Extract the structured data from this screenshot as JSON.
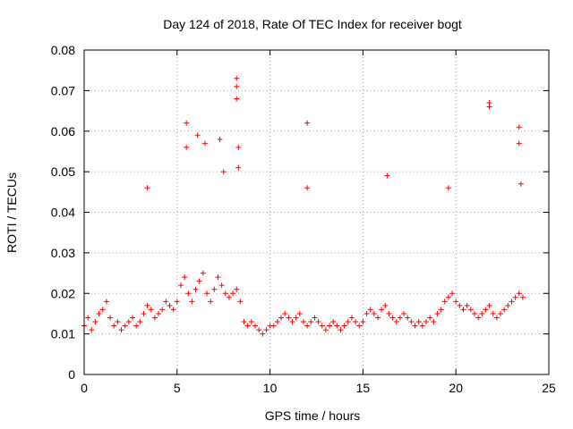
{
  "chart_data": {
    "type": "scatter",
    "title": "Day 124 of 2018, Rate Of TEC Index for receiver bogt",
    "xlabel": "GPS time / hours",
    "ylabel": "ROTI / TECUs",
    "xlim": [
      0,
      25
    ],
    "ylim": [
      0,
      0.08
    ],
    "xticks": [
      0,
      5,
      10,
      15,
      20,
      25
    ],
    "xtick_labels": [
      "0",
      "5",
      "10",
      "15",
      "20",
      "25"
    ],
    "yticks": [
      0,
      0.01,
      0.02,
      0.03,
      0.04,
      0.05,
      0.06,
      0.07,
      0.08
    ],
    "ytick_labels": [
      "0",
      "0.01",
      "0.02",
      "0.03",
      "0.04",
      "0.05",
      "0.06",
      "0.07",
      "0.08"
    ],
    "grid": true,
    "marker": "+",
    "color": "#ff0000",
    "series": [
      {
        "name": "ROTI",
        "x": [
          0.0,
          0.2,
          0.4,
          0.6,
          0.8,
          1.0,
          1.2,
          1.4,
          1.6,
          1.8,
          2.0,
          2.2,
          2.4,
          2.6,
          2.8,
          3.0,
          3.2,
          3.4,
          3.6,
          3.8,
          4.0,
          4.2,
          4.4,
          4.6,
          4.8,
          5.0,
          5.2,
          5.4,
          5.6,
          5.8,
          6.0,
          6.2,
          6.4,
          6.6,
          6.8,
          7.0,
          7.2,
          7.4,
          7.6,
          7.8,
          8.0,
          8.2,
          8.4,
          8.6,
          8.8,
          9.0,
          9.2,
          9.4,
          9.6,
          9.8,
          10.0,
          10.2,
          10.4,
          10.6,
          10.8,
          11.0,
          11.2,
          11.4,
          11.6,
          11.8,
          12.0,
          12.2,
          12.4,
          12.6,
          12.8,
          13.0,
          13.2,
          13.4,
          13.6,
          13.8,
          14.0,
          14.2,
          14.4,
          14.6,
          14.8,
          15.0,
          15.2,
          15.4,
          15.6,
          15.8,
          16.0,
          16.2,
          16.4,
          16.6,
          16.8,
          17.0,
          17.2,
          17.4,
          17.6,
          17.8,
          18.0,
          18.2,
          18.4,
          18.6,
          18.8,
          19.0,
          19.2,
          19.4,
          19.6,
          19.8,
          20.0,
          20.2,
          20.4,
          20.6,
          20.8,
          21.0,
          21.2,
          21.4,
          21.6,
          21.8,
          22.0,
          22.2,
          22.4,
          22.6,
          22.8,
          23.0,
          23.2,
          23.4,
          23.6,
          3.4,
          5.5,
          5.5,
          6.1,
          6.5,
          7.3,
          7.5,
          8.2,
          8.2,
          8.2,
          8.3,
          8.3,
          12.0,
          12.0,
          16.3,
          19.6,
          21.8,
          21.8,
          23.4,
          23.4,
          23.5
        ],
        "y": [
          0.012,
          0.014,
          0.011,
          0.013,
          0.015,
          0.016,
          0.018,
          0.014,
          0.012,
          0.013,
          0.011,
          0.012,
          0.013,
          0.014,
          0.012,
          0.013,
          0.015,
          0.017,
          0.016,
          0.014,
          0.015,
          0.016,
          0.018,
          0.017,
          0.016,
          0.018,
          0.022,
          0.024,
          0.02,
          0.018,
          0.021,
          0.023,
          0.025,
          0.02,
          0.018,
          0.021,
          0.024,
          0.022,
          0.02,
          0.019,
          0.02,
          0.021,
          0.018,
          0.013,
          0.012,
          0.013,
          0.012,
          0.011,
          0.01,
          0.011,
          0.012,
          0.012,
          0.013,
          0.014,
          0.015,
          0.014,
          0.013,
          0.014,
          0.015,
          0.013,
          0.012,
          0.013,
          0.014,
          0.013,
          0.012,
          0.011,
          0.012,
          0.013,
          0.012,
          0.011,
          0.012,
          0.013,
          0.014,
          0.013,
          0.012,
          0.013,
          0.015,
          0.016,
          0.015,
          0.014,
          0.016,
          0.017,
          0.015,
          0.014,
          0.013,
          0.014,
          0.015,
          0.014,
          0.013,
          0.012,
          0.013,
          0.012,
          0.013,
          0.014,
          0.013,
          0.015,
          0.016,
          0.018,
          0.019,
          0.02,
          0.018,
          0.017,
          0.016,
          0.017,
          0.016,
          0.015,
          0.014,
          0.015,
          0.016,
          0.017,
          0.015,
          0.014,
          0.015,
          0.016,
          0.017,
          0.018,
          0.019,
          0.02,
          0.019,
          0.046,
          0.056,
          0.062,
          0.059,
          0.057,
          0.058,
          0.05,
          0.073,
          0.071,
          0.068,
          0.056,
          0.051,
          0.062,
          0.046,
          0.049,
          0.046,
          0.067,
          0.066,
          0.061,
          0.057,
          0.047
        ]
      }
    ]
  }
}
